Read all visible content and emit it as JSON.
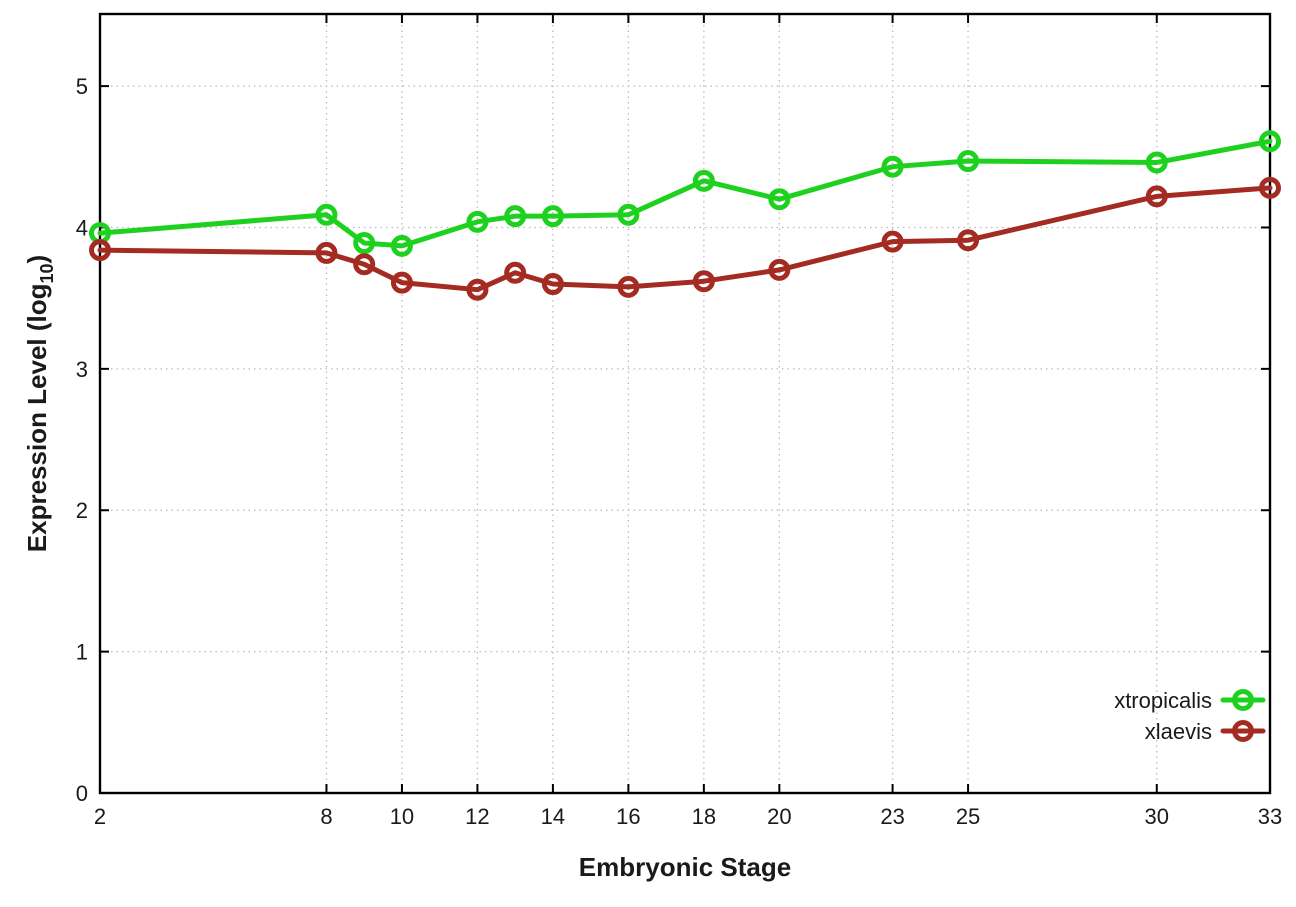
{
  "chart_data": {
    "type": "line",
    "x": [
      2,
      8,
      9,
      10,
      12,
      13,
      14,
      16,
      18,
      20,
      23,
      25,
      30,
      33
    ],
    "series": [
      {
        "name": "xtropicalis",
        "color": "#1fd11f",
        "values": [
          3.96,
          4.09,
          3.89,
          3.87,
          4.04,
          4.08,
          4.08,
          4.09,
          4.33,
          4.2,
          4.43,
          4.47,
          4.46,
          4.61
        ]
      },
      {
        "name": "xlaevis",
        "color": "#a32b22",
        "values": [
          3.84,
          3.82,
          3.74,
          3.61,
          3.56,
          3.68,
          3.6,
          3.58,
          3.62,
          3.7,
          3.9,
          3.91,
          4.22,
          4.28
        ]
      }
    ],
    "title": "",
    "xlabel": "Embryonic Stage",
    "ylabel": "Expression Level (log10)",
    "ylabel_parts": {
      "pre": "Expression Level (log",
      "sub": "10",
      "post": ")"
    },
    "xlim": [
      2,
      33
    ],
    "ylim": [
      0,
      5.51
    ],
    "xticks": [
      2,
      8,
      10,
      12,
      14,
      16,
      18,
      20,
      23,
      25,
      30,
      33
    ],
    "yticks": [
      0,
      1,
      2,
      3,
      4,
      5
    ],
    "grid": true,
    "grid_style": "dotted",
    "legend_position": "inside-right",
    "marker": "open-circle",
    "colors": {
      "background": "#ffffff",
      "border": "#000000",
      "grid": "#bbbbbb",
      "text": "#1a1a1a"
    }
  }
}
